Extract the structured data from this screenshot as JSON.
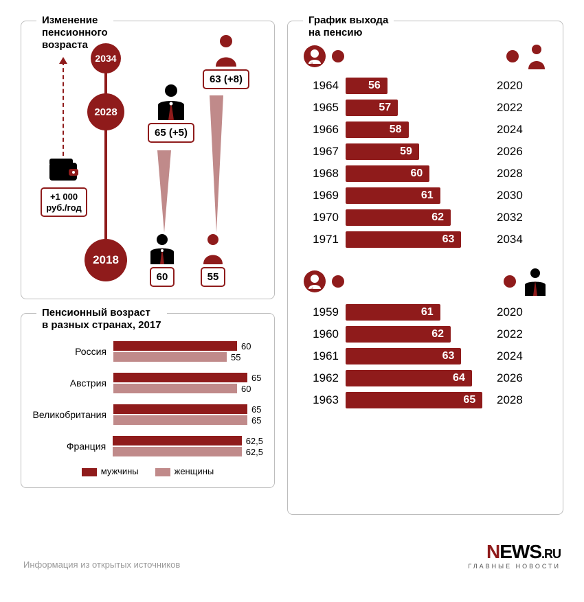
{
  "colors": {
    "primary": "#8f1b1b",
    "primary_light": "#c08a8a",
    "black": "#000000",
    "grey_text": "#9a9a9a",
    "border": "#bdbdbd",
    "white": "#ffffff"
  },
  "panel_timeline": {
    "title": "Изменение\nпенсионного\nвозраста",
    "years": [
      "2034",
      "2028",
      "2018"
    ],
    "wallet_label": "+1 000\nруб./год",
    "woman_new": "63 (+8)",
    "man_new": "65 (+5)",
    "man_old": "60",
    "woman_old": "55"
  },
  "panel_countries": {
    "title": "Пенсионный возраст\nв разных странах, 2017",
    "bar_max": 70,
    "male_color": "#8f1b1b",
    "female_color": "#c08a8a",
    "legend_male": "мужчины",
    "legend_female": "женщины",
    "rows": [
      {
        "name": "Россия",
        "male": 60,
        "female": 55,
        "male_label": "60",
        "female_label": "55"
      },
      {
        "name": "Австрия",
        "male": 65,
        "female": 60,
        "male_label": "65",
        "female_label": "60"
      },
      {
        "name": "Великобритания",
        "male": 65,
        "female": 65,
        "male_label": "65",
        "female_label": "65"
      },
      {
        "name": "Франция",
        "male": 62.5,
        "female": 62.5,
        "male_label": "62,5",
        "female_label": "62,5"
      }
    ]
  },
  "panel_schedule": {
    "title": "График выхода\nна пенсию",
    "bar_color": "#8f1b1b",
    "bar_min": 54,
    "bar_max": 67,
    "women": [
      {
        "birth": "1964",
        "age": 56,
        "retire": "2020"
      },
      {
        "birth": "1965",
        "age": 57,
        "retire": "2022"
      },
      {
        "birth": "1966",
        "age": 58,
        "retire": "2024"
      },
      {
        "birth": "1967",
        "age": 59,
        "retire": "2026"
      },
      {
        "birth": "1968",
        "age": 60,
        "retire": "2028"
      },
      {
        "birth": "1969",
        "age": 61,
        "retire": "2030"
      },
      {
        "birth": "1970",
        "age": 62,
        "retire": "2032"
      },
      {
        "birth": "1971",
        "age": 63,
        "retire": "2034"
      }
    ],
    "men": [
      {
        "birth": "1959",
        "age": 61,
        "retire": "2020"
      },
      {
        "birth": "1960",
        "age": 62,
        "retire": "2022"
      },
      {
        "birth": "1961",
        "age": 63,
        "retire": "2024"
      },
      {
        "birth": "1962",
        "age": 64,
        "retire": "2026"
      },
      {
        "birth": "1963",
        "age": 65,
        "retire": "2028"
      }
    ]
  },
  "footer": {
    "source": "Информация из открытых источников",
    "logo_main_pre": "N",
    "logo_main_post": "EWS",
    "logo_ru": ".RU",
    "logo_sub": "главные новости"
  }
}
